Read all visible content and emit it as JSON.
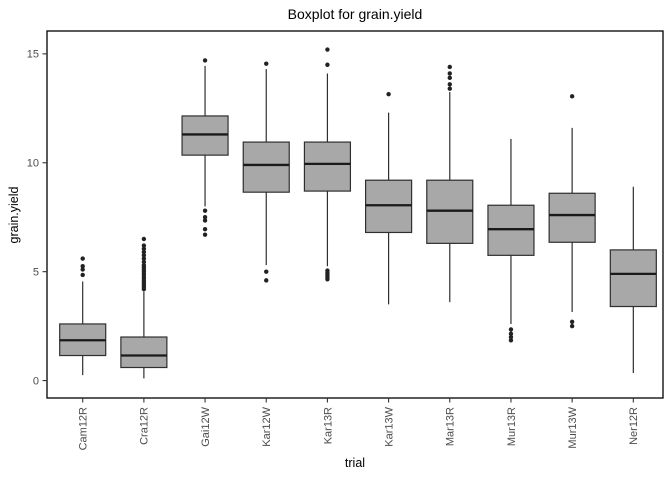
{
  "chart_data": {
    "type": "boxplot",
    "title": "Boxplot for grain.yield",
    "xlabel": "trial",
    "ylabel": "grain.yield",
    "categories": [
      "Cam12R",
      "Cra12R",
      "Gai12W",
      "Kar12W",
      "Kar13R",
      "Kar13W",
      "Mar13R",
      "Mur13R",
      "Mur13W",
      "Ner12R"
    ],
    "y_ticks": [
      0,
      5,
      10,
      15
    ],
    "ylim": [
      -0.8,
      16.05
    ],
    "grid": "off",
    "legend": "none",
    "panel_border": true,
    "colors": {
      "box_fill": "#a8a8a8",
      "box_stroke": "#2f2f2f",
      "median": "#1a1a1a",
      "whisker": "#2f2f2f",
      "outlier": "#222222",
      "axis_text": "#4d4d4d",
      "tick": "#333333",
      "panel_border": "#000000",
      "title_text": "#000000",
      "background": "#ffffff"
    },
    "series": [
      {
        "name": "Cam12R",
        "whisker_low": 0.25,
        "q1": 1.15,
        "median": 1.85,
        "q3": 2.6,
        "whisker_high": 4.55,
        "outliers": [
          4.85,
          5.1,
          5.25,
          5.6
        ]
      },
      {
        "name": "Cra12R",
        "whisker_low": 0.1,
        "q1": 0.6,
        "median": 1.15,
        "q3": 2.0,
        "whisker_high": 4.1,
        "outliers": [
          4.2,
          4.3,
          4.4,
          4.5,
          4.6,
          4.7,
          4.8,
          4.9,
          5.0,
          5.1,
          5.2,
          5.3,
          5.45,
          5.6,
          5.75,
          5.9,
          6.05,
          6.2,
          6.5
        ]
      },
      {
        "name": "Gai12W",
        "whisker_low": 8.0,
        "q1": 10.35,
        "median": 11.3,
        "q3": 12.15,
        "whisker_high": 14.45,
        "outliers": [
          14.7,
          7.8,
          7.5,
          7.35,
          6.95,
          6.7
        ]
      },
      {
        "name": "Kar12W",
        "whisker_low": 5.3,
        "q1": 8.65,
        "median": 9.9,
        "q3": 10.95,
        "whisker_high": 14.3,
        "outliers": [
          14.55,
          5.0,
          4.6
        ]
      },
      {
        "name": "Kar13R",
        "whisker_low": 5.25,
        "q1": 8.7,
        "median": 9.95,
        "q3": 10.95,
        "whisker_high": 14.1,
        "outliers": [
          15.2,
          14.5,
          5.05,
          4.95,
          4.85,
          4.75,
          4.65
        ]
      },
      {
        "name": "Kar13W",
        "whisker_low": 3.5,
        "q1": 6.8,
        "median": 8.05,
        "q3": 9.2,
        "whisker_high": 12.3,
        "outliers": [
          13.15
        ]
      },
      {
        "name": "Mar13R",
        "whisker_low": 3.6,
        "q1": 6.3,
        "median": 7.8,
        "q3": 9.2,
        "whisker_high": 13.25,
        "outliers": [
          14.4,
          14.1,
          13.9,
          13.6,
          13.4
        ]
      },
      {
        "name": "Mur13R",
        "whisker_low": 2.6,
        "q1": 5.75,
        "median": 6.95,
        "q3": 8.05,
        "whisker_high": 11.1,
        "outliers": [
          2.35,
          2.15,
          2.0,
          1.85
        ]
      },
      {
        "name": "Mur13W",
        "whisker_low": 3.15,
        "q1": 6.35,
        "median": 7.6,
        "q3": 8.6,
        "whisker_high": 11.6,
        "outliers": [
          13.05,
          2.7,
          2.5
        ]
      },
      {
        "name": "Ner12R",
        "whisker_low": 0.35,
        "q1": 3.4,
        "median": 4.9,
        "q3": 6.0,
        "whisker_high": 8.9,
        "outliers": []
      }
    ]
  }
}
